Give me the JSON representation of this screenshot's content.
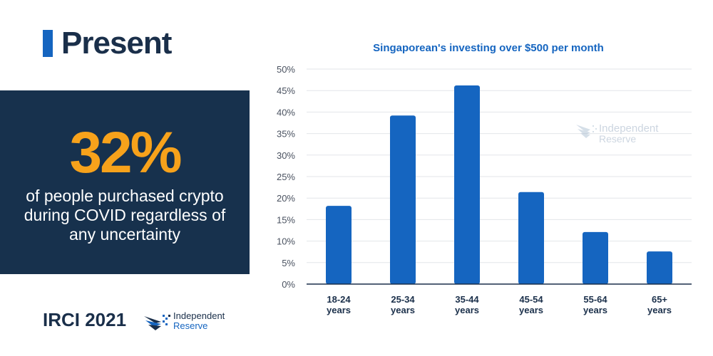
{
  "header": {
    "title": "Present"
  },
  "stat": {
    "value": "32%",
    "description": "of people purchased crypto during COVID regardless of any uncertainty"
  },
  "footer": {
    "label": "IRCI 2021"
  },
  "brand": {
    "name_line1": "Independent",
    "name_line2": "Reserve"
  },
  "colors": {
    "accent": "#1565c0",
    "navy": "#17314d",
    "orange": "#f7a21b",
    "bar": "#1565c0"
  },
  "chart_data": {
    "type": "bar",
    "title": "Singaporean's investing over $500 per month",
    "categories": [
      "18-24 years",
      "25-34 years",
      "35-44 years",
      "45-54 years",
      "55-64 years",
      "65+ years"
    ],
    "category_lines": [
      [
        "18-24",
        "years"
      ],
      [
        "25-34",
        "years"
      ],
      [
        "35-44",
        "years"
      ],
      [
        "45-54",
        "years"
      ],
      [
        "55-64",
        "years"
      ],
      [
        "65+",
        "years"
      ]
    ],
    "values": [
      18.2,
      39.2,
      46.2,
      21.4,
      12.1,
      7.6
    ],
    "ylim": [
      0,
      50
    ],
    "yticks": [
      "0%",
      "5%",
      "10%",
      "15%",
      "20%",
      "25%",
      "30%",
      "35%",
      "40%",
      "45%",
      "50%"
    ],
    "grid": true,
    "watermark": {
      "line1": "Independent",
      "line2": "Reserve"
    }
  }
}
